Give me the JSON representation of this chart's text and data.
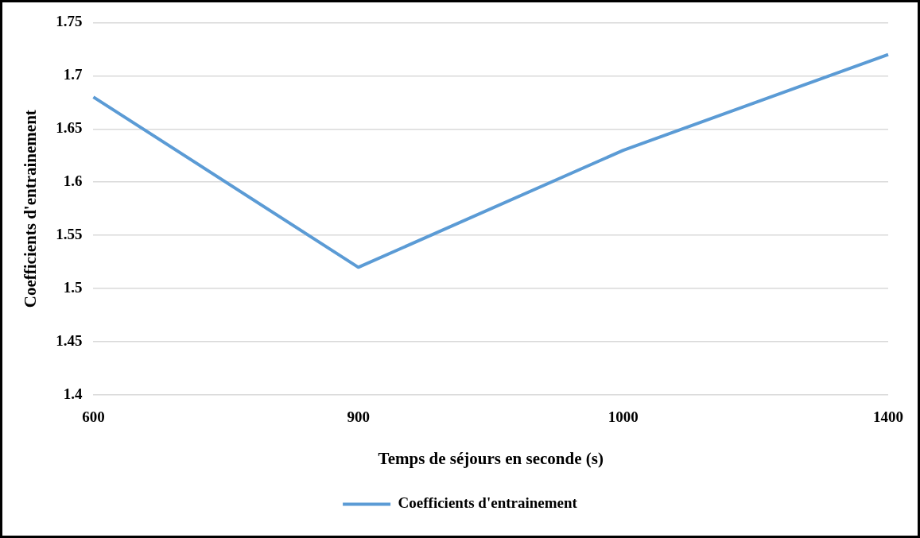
{
  "chart_data": {
    "type": "line",
    "xlabel": "Temps de séjours en seconde (s)",
    "ylabel": "Coefficients d'entrainement",
    "categories": [
      "600",
      "900",
      "1000",
      "1400"
    ],
    "series": [
      {
        "name": "Coefficients d'entrainement",
        "color": "#5b9bd5",
        "values": [
          1.68,
          1.52,
          1.63,
          1.72
        ]
      }
    ],
    "ylim": [
      1.4,
      1.75
    ],
    "yticks": [
      1.4,
      1.45,
      1.5,
      1.55,
      1.6,
      1.65,
      1.7,
      1.75
    ],
    "grid": "y",
    "legend": "bottom",
    "marker": "none",
    "line_style": "solid"
  }
}
